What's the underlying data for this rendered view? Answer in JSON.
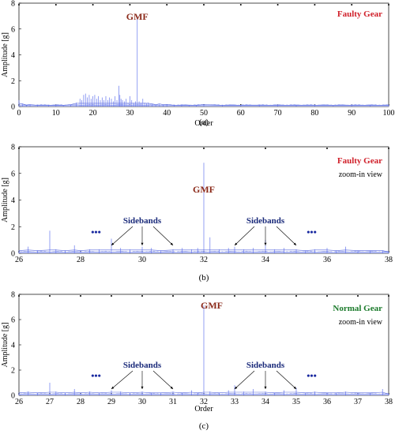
{
  "chart_data": [
    {
      "type": "line",
      "panel": "a",
      "caption": "(a)",
      "title": "",
      "xlabel": "Order",
      "ylabel": "Amplitude [g]",
      "xlim": [
        0,
        100
      ],
      "ylim": [
        0,
        8
      ],
      "xticks": [
        0,
        10,
        20,
        30,
        40,
        50,
        60,
        70,
        80,
        90,
        100
      ],
      "yticks": [
        0,
        2,
        4,
        6,
        8
      ],
      "label": "Faulty Gear",
      "sublabel": "",
      "gmf_label": "GMF",
      "sidebands_label": "",
      "dots_label": "",
      "x": [
        0,
        1,
        2,
        3,
        5,
        8,
        10,
        12,
        14,
        15.5,
        16.5,
        17,
        17.5,
        18,
        18.5,
        19,
        19.5,
        20,
        20.5,
        21,
        21.5,
        22,
        22.5,
        23,
        23.5,
        24,
        24.5,
        25,
        25.5,
        26,
        26.5,
        27,
        27.3,
        27.6,
        28,
        28.5,
        29,
        29.5,
        30,
        30.5,
        31,
        31.5,
        32,
        32.5,
        33,
        33.5,
        34,
        34.5,
        35,
        36,
        37,
        38,
        39,
        40,
        42,
        44,
        46,
        48,
        50,
        55,
        60,
        65,
        70,
        75,
        80,
        85,
        90,
        95,
        100
      ],
      "y": [
        0.5,
        0.2,
        0.1,
        0.15,
        0.1,
        0.1,
        0.1,
        0.1,
        0.15,
        0.3,
        0.6,
        0.5,
        0.9,
        1.0,
        0.7,
        0.9,
        0.6,
        0.8,
        0.9,
        0.6,
        0.8,
        0.5,
        0.7,
        0.5,
        0.8,
        0.5,
        0.7,
        0.6,
        0.4,
        0.8,
        0.5,
        1.6,
        0.9,
        0.6,
        0.5,
        0.4,
        0.6,
        0.3,
        0.8,
        0.5,
        0.3,
        0.4,
        7.0,
        0.4,
        0.3,
        0.6,
        0.3,
        0.25,
        0.3,
        0.2,
        0.15,
        0.2,
        0.15,
        0.15,
        0.1,
        0.1,
        0.1,
        0.1,
        0.15,
        0.1,
        0.1,
        0.1,
        0.1,
        0.1,
        0.1,
        0.1,
        0.1,
        0.1,
        0.1
      ],
      "marks": [
        0,
        10,
        20,
        30,
        40,
        50,
        60,
        70,
        80,
        90,
        100
      ]
    },
    {
      "type": "line",
      "panel": "b",
      "caption": "(b)",
      "title": "",
      "xlabel": "",
      "ylabel": "Amplitude [g]",
      "xlim": [
        26,
        38
      ],
      "ylim": [
        0,
        8
      ],
      "xticks": [
        26,
        28,
        30,
        32,
        34,
        36,
        38
      ],
      "yticks": [
        0,
        2,
        4,
        6,
        8
      ],
      "label": "Faulty Gear",
      "sublabel": "zoom-in view",
      "gmf_label": "GMF",
      "sidebands_label": "Sidebands",
      "dots_label": "•••",
      "x": [
        26,
        26.3,
        26.6,
        27,
        27.2,
        27.5,
        27.8,
        28,
        28.3,
        28.6,
        29,
        29.3,
        29.6,
        30,
        30.3,
        30.6,
        31,
        31.3,
        31.6,
        31.8,
        32,
        32.2,
        32.5,
        32.8,
        33,
        33.3,
        33.6,
        34,
        34.3,
        34.6,
        35,
        35.3,
        35.6,
        36,
        36.3,
        36.6,
        37,
        37.4,
        37.8,
        38
      ],
      "y": [
        0.2,
        0.5,
        0.2,
        1.7,
        0.3,
        0.2,
        0.6,
        0.2,
        0.3,
        0.3,
        1.1,
        0.4,
        0.3,
        0.5,
        0.4,
        0.2,
        0.3,
        0.4,
        0.3,
        0.4,
        6.8,
        1.2,
        0.3,
        0.4,
        0.5,
        0.3,
        0.4,
        1.0,
        0.3,
        0.4,
        0.3,
        0.2,
        0.3,
        0.4,
        0.2,
        0.5,
        0.2,
        0.2,
        0.2,
        0.1
      ],
      "marks": [
        26,
        28,
        30,
        32,
        34,
        36,
        38
      ]
    },
    {
      "type": "line",
      "panel": "c",
      "caption": "(c)",
      "title": "",
      "xlabel": "Order",
      "ylabel": "Amplitude [g]",
      "xlim": [
        26,
        38
      ],
      "ylim": [
        0,
        8
      ],
      "xticks": [
        26,
        27,
        28,
        29,
        30,
        31,
        32,
        33,
        34,
        35,
        36,
        37,
        38
      ],
      "yticks": [
        0,
        2,
        4,
        6,
        8
      ],
      "label": "Normal Gear",
      "sublabel": "zoom-in view",
      "gmf_label": "GMF",
      "sidebands_label": "Sidebands",
      "dots_label": "•••",
      "x": [
        26,
        26.3,
        26.6,
        27,
        27.2,
        27.5,
        27.8,
        28,
        28.3,
        28.6,
        29,
        29.3,
        29.6,
        30,
        30.3,
        30.6,
        31,
        31.3,
        31.6,
        31.8,
        32,
        32.2,
        32.5,
        32.8,
        33,
        33.3,
        33.6,
        34,
        34.3,
        34.6,
        35,
        35.3,
        35.6,
        36,
        36.3,
        36.6,
        37,
        37.4,
        37.8,
        38
      ],
      "y": [
        0.2,
        0.3,
        0.2,
        1.0,
        0.3,
        0.2,
        0.5,
        0.2,
        0.3,
        0.2,
        0.4,
        0.3,
        0.2,
        0.3,
        0.2,
        0.2,
        0.3,
        0.2,
        0.4,
        0.2,
        7.1,
        0.3,
        0.2,
        0.4,
        0.8,
        0.3,
        0.5,
        0.3,
        0.2,
        0.4,
        0.6,
        0.2,
        0.3,
        0.2,
        0.2,
        0.3,
        0.2,
        0.2,
        0.5,
        0.1
      ],
      "marks": [
        26,
        27,
        28,
        29,
        30,
        31,
        32,
        33,
        34,
        35,
        36,
        37,
        38
      ]
    }
  ]
}
